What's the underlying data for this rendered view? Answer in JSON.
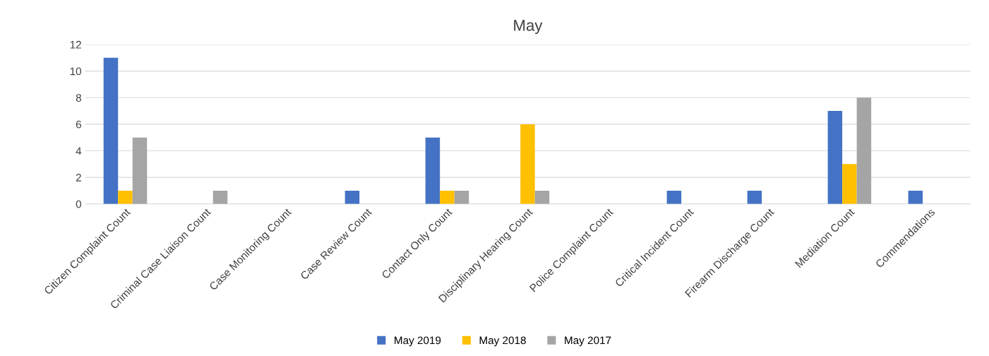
{
  "chart_data": {
    "type": "bar",
    "title": "May",
    "categories": [
      "Citizen Complaint Count",
      "Criminal Case Liaison Count",
      "Case Monitoring Count",
      "Case Review Count",
      "Contact Only Count",
      "Disciplinary Hearing Count",
      "Police Complaint Count",
      "Critical Incident Count",
      "Firearm Discharge Count",
      "Mediation Count",
      "Commendations"
    ],
    "series": [
      {
        "name": "May 2019",
        "color": "#4472c4",
        "values": [
          11,
          0,
          0,
          1,
          5,
          0,
          0,
          1,
          1,
          7,
          1
        ]
      },
      {
        "name": "May 2018",
        "color": "#ffc000",
        "values": [
          1,
          0,
          0,
          0,
          1,
          6,
          0,
          0,
          0,
          3,
          0
        ]
      },
      {
        "name": "May 2017",
        "color": "#a5a5a5",
        "values": [
          5,
          1,
          0,
          0,
          1,
          1,
          0,
          0,
          0,
          8,
          0
        ]
      }
    ],
    "ylim": [
      0,
      12
    ],
    "yticks": [
      0,
      2,
      4,
      6,
      8,
      10,
      12
    ],
    "grid": "y",
    "legend": "bottom"
  }
}
